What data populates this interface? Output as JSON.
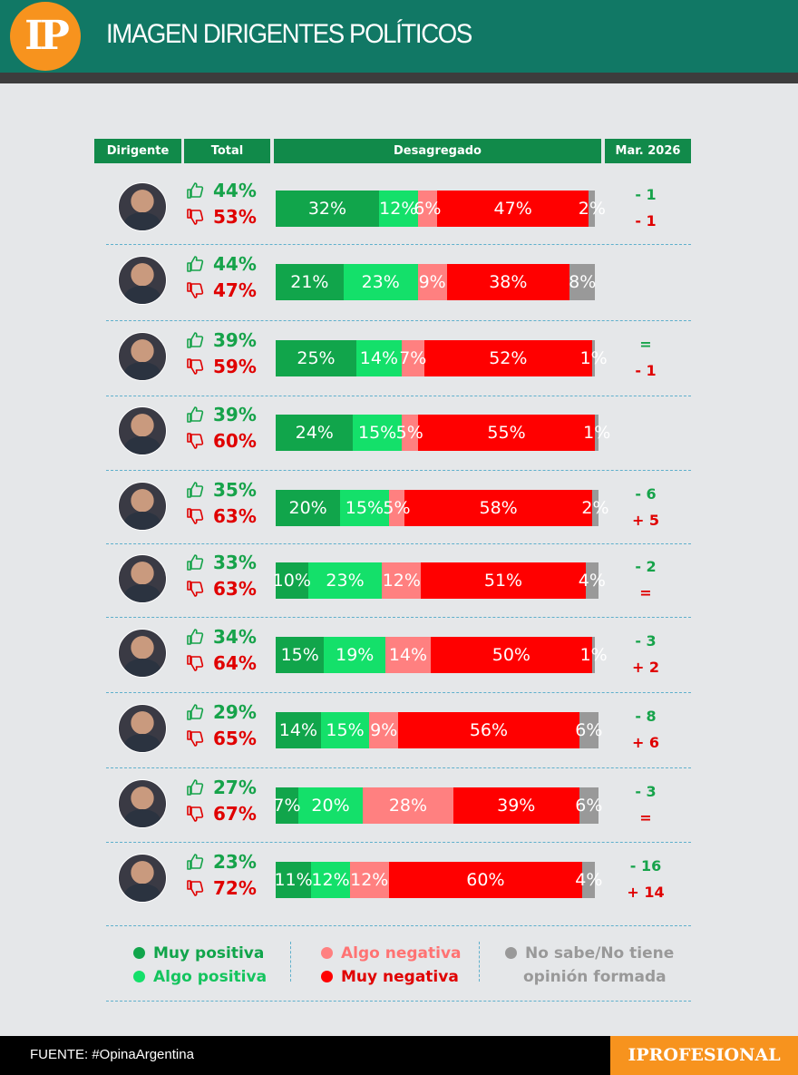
{
  "header": {
    "logo": "IP",
    "title": "IMAGEN DIRIGENTES POLÍTICOS"
  },
  "columns": {
    "dirigente": "Dirigente",
    "total": "Total",
    "desagregado": "Desagregado",
    "comparacion": "Mar. 2026"
  },
  "colors": {
    "muy_positiva": "#11a54b",
    "algo_positiva": "#14e06a",
    "algo_negativa": "#ff8080",
    "muy_negativa": "#ff0000",
    "no_sabe": "#999999",
    "header": "#117865",
    "accent": "#f7931e"
  },
  "chart_data": {
    "type": "bar",
    "stacked": true,
    "orientation": "horizontal",
    "series": [
      {
        "name": "Muy positiva",
        "values": [
          32,
          21,
          25,
          24,
          20,
          10,
          15,
          14,
          7,
          11
        ]
      },
      {
        "name": "Algo positiva",
        "values": [
          12,
          23,
          14,
          15,
          15,
          23,
          19,
          15,
          20,
          12
        ]
      },
      {
        "name": "Algo negativa",
        "values": [
          6,
          9,
          7,
          5,
          5,
          12,
          14,
          9,
          28,
          12
        ]
      },
      {
        "name": "Muy negativa",
        "values": [
          47,
          38,
          52,
          55,
          58,
          51,
          50,
          56,
          39,
          60
        ]
      },
      {
        "name": "No sabe/No tiene opinión formada",
        "values": [
          2,
          8,
          1,
          1,
          2,
          4,
          1,
          6,
          6,
          4
        ]
      }
    ],
    "rows": [
      {
        "positiva": "44%",
        "negativa": "53%",
        "cambio_pos": "- 1",
        "cambio_neg": "- 1",
        "labels": [
          "32%",
          "12%",
          "6%",
          "47%",
          "2%"
        ]
      },
      {
        "positiva": "44%",
        "negativa": "47%",
        "cambio_pos": "",
        "cambio_neg": "",
        "labels": [
          "21%",
          "23%",
          "9%",
          "38%",
          "8%"
        ]
      },
      {
        "positiva": "39%",
        "negativa": "59%",
        "cambio_pos": "=",
        "cambio_neg": "- 1",
        "labels": [
          "25%",
          "14%",
          "7%",
          "52%",
          "1%"
        ]
      },
      {
        "positiva": "39%",
        "negativa": "60%",
        "cambio_pos": "",
        "cambio_neg": "",
        "labels": [
          "24%",
          "15%",
          "5%",
          "55%",
          "1%"
        ]
      },
      {
        "positiva": "35%",
        "negativa": "63%",
        "cambio_pos": "- 6",
        "cambio_neg": "+ 5",
        "labels": [
          "20%",
          "15%",
          "5%",
          "58%",
          "2%"
        ]
      },
      {
        "positiva": "33%",
        "negativa": "63%",
        "cambio_pos": "- 2",
        "cambio_neg": "=",
        "labels": [
          "10%",
          "23%",
          "12%",
          "51%",
          "4%"
        ]
      },
      {
        "positiva": "34%",
        "negativa": "64%",
        "cambio_pos": "- 3",
        "cambio_neg": "+ 2",
        "labels": [
          "15%",
          "19%",
          "14%",
          "50%",
          "1%"
        ]
      },
      {
        "positiva": "29%",
        "negativa": "65%",
        "cambio_pos": "- 8",
        "cambio_neg": "+ 6",
        "labels": [
          "14%",
          "15%",
          "9%",
          "56%",
          "6%"
        ]
      },
      {
        "positiva": "27%",
        "negativa": "67%",
        "cambio_pos": "- 3",
        "cambio_neg": "=",
        "labels": [
          "7%",
          "20%",
          "28%",
          "39%",
          "6%"
        ]
      },
      {
        "positiva": "23%",
        "negativa": "72%",
        "cambio_pos": "- 16",
        "cambio_neg": "+ 14",
        "labels": [
          "11%",
          "12%",
          "12%",
          "60%",
          "4%"
        ]
      }
    ]
  },
  "legend": {
    "muy_positiva": "Muy positiva",
    "algo_positiva": "Algo positiva",
    "algo_negativa": "Algo negativa",
    "muy_negativa": "Muy negativa",
    "no_sabe_1": "No sabe/No tiene",
    "no_sabe_2": "opinión formada"
  },
  "footer": {
    "source": "FUENTE: #OpinaArgentina",
    "brand": "IPROFESIONAL"
  }
}
